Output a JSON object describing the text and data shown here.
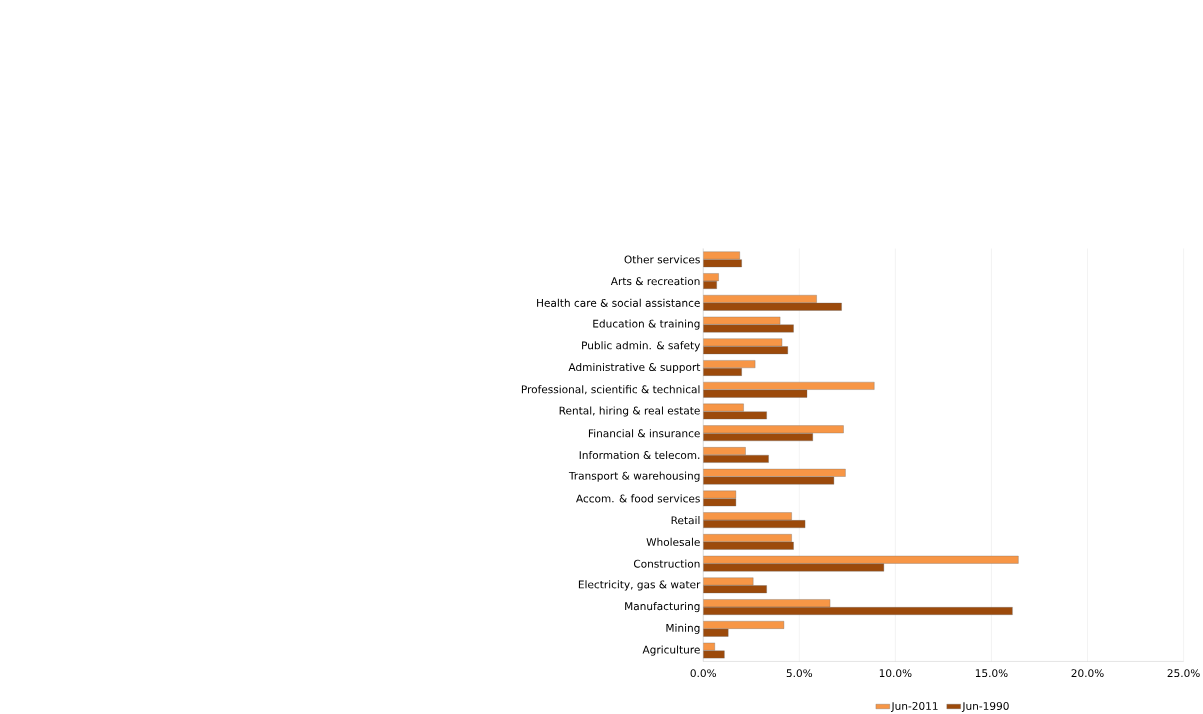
{
  "chart_data": {
    "type": "bar",
    "orientation": "horizontal",
    "categories": [
      "Other services",
      "Arts & recreation",
      "Health care & social assistance",
      "Education & training",
      "Public admin. & safety",
      "Administrative & support",
      "Professional, scientific & technical",
      "Rental, hiring & real estate",
      "Financial & insurance",
      "Information & telecom.",
      "Transport & warehousing",
      "Accom. & food services",
      "Retail",
      "Wholesale",
      "Construction",
      "Electricity, gas & water",
      "Manufacturing",
      "Mining",
      "Agriculture"
    ],
    "series": [
      {
        "name": "Jun-2011",
        "color": "#f79646",
        "values": [
          1.9,
          0.8,
          5.9,
          4.0,
          4.1,
          2.7,
          8.9,
          2.1,
          7.3,
          2.2,
          7.4,
          1.7,
          4.6,
          4.6,
          16.4,
          2.6,
          6.6,
          4.2,
          0.6
        ]
      },
      {
        "name": "Jun-1990",
        "color": "#9c4a0b",
        "values": [
          2.0,
          0.7,
          7.2,
          4.7,
          4.4,
          2.0,
          5.4,
          3.3,
          5.7,
          3.4,
          6.8,
          1.7,
          5.3,
          4.7,
          9.4,
          3.3,
          16.1,
          1.3,
          1.1
        ]
      }
    ],
    "xlim": [
      0,
      25
    ],
    "xticks": [
      {
        "value": 0,
        "label": "0.0%"
      },
      {
        "value": 5,
        "label": "5.0%"
      },
      {
        "value": 10,
        "label": "10.0%"
      },
      {
        "value": 15,
        "label": "15.0%"
      },
      {
        "value": 20,
        "label": "20.0%"
      },
      {
        "value": 25,
        "label": "25.0%"
      }
    ],
    "grid": "x",
    "legend": "bottom"
  }
}
